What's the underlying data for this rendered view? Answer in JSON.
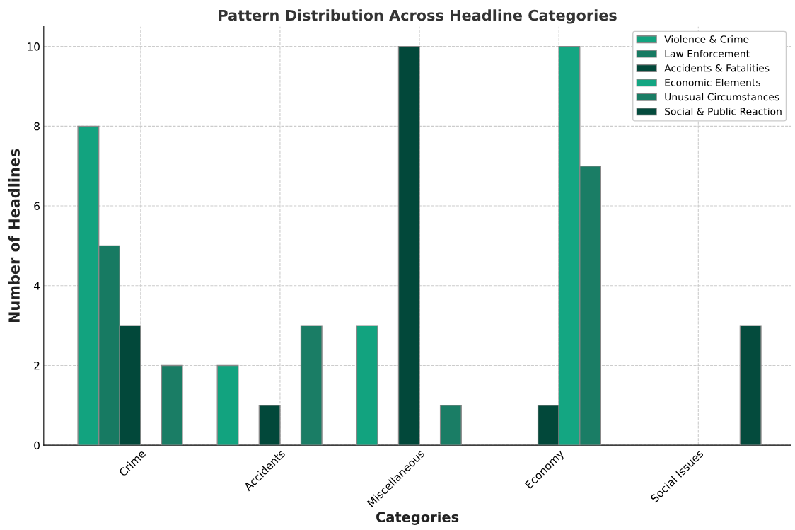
{
  "chart_data": {
    "type": "bar",
    "title": "Pattern Distribution Across Headline Categories",
    "xlabel": "Categories",
    "ylabel": "Number of Headlines",
    "categories": [
      "Crime",
      "Accidents",
      "Miscellaneous",
      "Economy",
      "Social Issues"
    ],
    "series": [
      {
        "name": "Violence & Crime",
        "color": "#12a37f",
        "values": [
          8,
          2,
          3,
          null,
          null
        ]
      },
      {
        "name": "Law Enforcement",
        "color": "#177a62",
        "values": [
          5,
          null,
          null,
          null,
          null
        ]
      },
      {
        "name": "Accidents & Fatalities",
        "color": "#02483a",
        "values": [
          3,
          1,
          10,
          1,
          null
        ]
      },
      {
        "name": "Economic Elements",
        "color": "#14a682",
        "values": [
          null,
          null,
          null,
          10,
          null
        ]
      },
      {
        "name": "Unusual Circumstances",
        "color": "#1a7d65",
        "values": [
          2,
          3,
          1,
          7,
          null
        ]
      },
      {
        "name": "Social & Public Reaction",
        "color": "#044b3d",
        "values": [
          null,
          null,
          null,
          null,
          3
        ]
      }
    ],
    "ylim": [
      0,
      10.5
    ],
    "yticks": [
      0,
      2,
      4,
      6,
      8,
      10
    ],
    "grid": true,
    "legend": "top right"
  }
}
